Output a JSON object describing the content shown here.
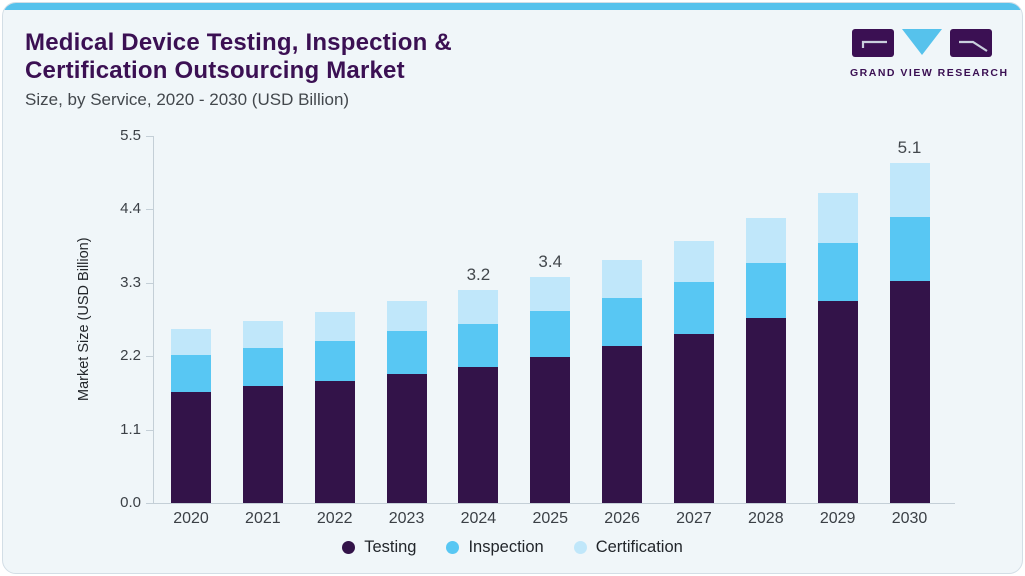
{
  "header": {
    "title_line1": "Medical Device Testing, Inspection &",
    "title_line2": "Certification Outsourcing Market",
    "subtitle": "Size, by Service, 2020 - 2030 (USD Billion)"
  },
  "logo": {
    "text": "GRAND VIEW RESEARCH"
  },
  "colors": {
    "accent_bar": "#56c2ec",
    "title": "#3b1053",
    "axis": "#c4cfd7",
    "testing": "#331349",
    "inspection": "#58c7f3",
    "certification": "#c0e7fa",
    "card_background": "#f0f6f9"
  },
  "chart_data": {
    "type": "bar",
    "stacked": true,
    "title": "Medical Device Testing, Inspection & Certification Outsourcing Market Size, by Service, 2020 - 2030 (USD Billion)",
    "categories": [
      "2020",
      "2021",
      "2022",
      "2023",
      "2024",
      "2025",
      "2026",
      "2027",
      "2028",
      "2029",
      "2030"
    ],
    "series": [
      {
        "name": "Testing",
        "color": "#331349",
        "values": [
          1.67,
          1.76,
          1.83,
          1.94,
          2.04,
          2.19,
          2.36,
          2.54,
          2.77,
          3.03,
          3.32
        ]
      },
      {
        "name": "Inspection",
        "color": "#58c7f3",
        "values": [
          0.55,
          0.56,
          0.6,
          0.64,
          0.64,
          0.68,
          0.71,
          0.77,
          0.83,
          0.87,
          0.97
        ]
      },
      {
        "name": "Certification",
        "color": "#c0e7fa",
        "values": [
          0.39,
          0.41,
          0.43,
          0.45,
          0.51,
          0.52,
          0.57,
          0.62,
          0.67,
          0.75,
          0.81
        ]
      }
    ],
    "totals": [
      2.61,
      2.73,
      2.86,
      3.03,
      3.19,
      3.39,
      3.64,
      3.93,
      4.27,
      4.65,
      5.1
    ],
    "bar_total_labels": [
      "",
      "",
      "",
      "",
      "3.2",
      "3.4",
      "",
      "",
      "",
      "",
      "5.1"
    ],
    "xlabel": "",
    "ylabel": "Market Size (USD Billion)",
    "yticks": [
      "0.0",
      "1.1",
      "2.2",
      "3.3",
      "4.4",
      "5.5"
    ],
    "ylim": [
      0,
      5.5
    ],
    "grid": false,
    "legend_position": "bottom"
  }
}
